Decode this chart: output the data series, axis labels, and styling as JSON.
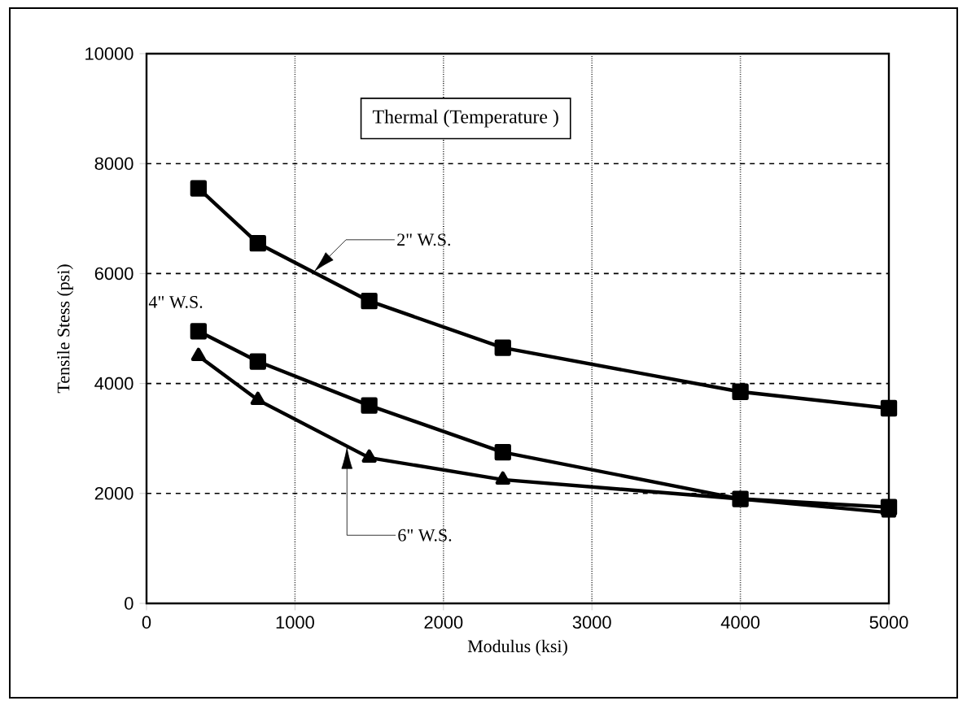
{
  "chart_data": {
    "type": "line",
    "title": "Thermal (Temperature )",
    "xlabel": "Modulus (ksi)",
    "ylabel": "Tensile Stess (psi)",
    "xlim": [
      0,
      5000
    ],
    "ylim": [
      0,
      10000
    ],
    "xticks": [
      0,
      1000,
      2000,
      3000,
      4000,
      5000
    ],
    "yticks": [
      0,
      2000,
      4000,
      6000,
      8000,
      10000
    ],
    "grid": true,
    "x": [
      350,
      750,
      1500,
      2400,
      4000,
      5000
    ],
    "series": [
      {
        "name": "2\" W.S.",
        "color": "#000000",
        "marker": "square",
        "values": [
          7550,
          6550,
          5500,
          4650,
          3850,
          3550
        ]
      },
      {
        "name": "4\" W.S.",
        "color": "#000000",
        "marker": "square",
        "values": [
          4950,
          4400,
          3600,
          2750,
          1900,
          1750
        ]
      },
      {
        "name": "6\" W.S.",
        "color": "#000000",
        "marker": "triangle",
        "values": [
          4500,
          3700,
          2650,
          2250,
          1900,
          1650
        ]
      }
    ]
  }
}
